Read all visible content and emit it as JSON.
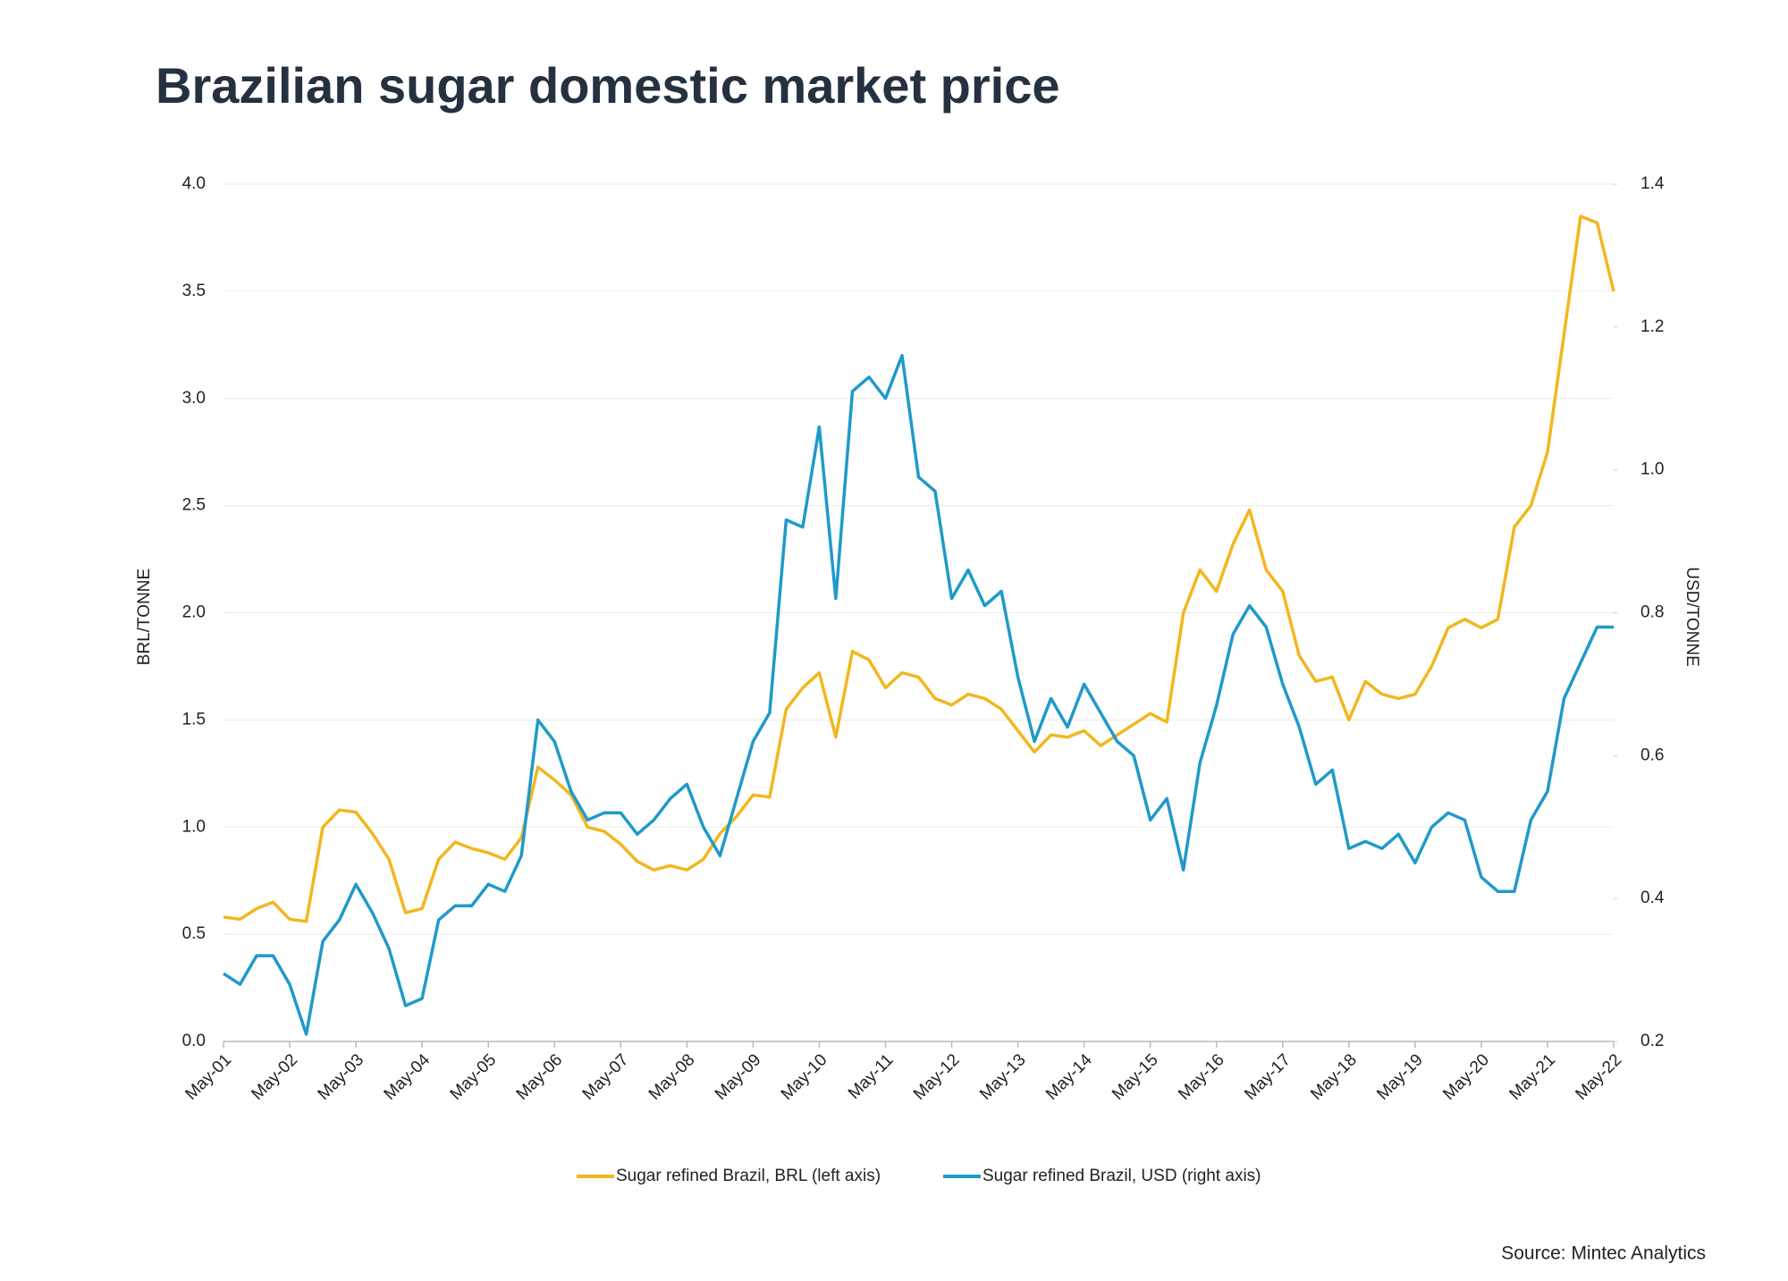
{
  "chart_data": {
    "type": "line",
    "title": "Brazilian sugar domestic market price",
    "y_label": "BRL/TONNE",
    "y2_label": "USD/TONNE",
    "source": "Source: Mintec Analytics",
    "categories": [
      "May-01",
      null,
      null,
      null,
      "May-02",
      null,
      null,
      null,
      "May-03",
      null,
      null,
      null,
      "May-04",
      null,
      null,
      null,
      "May-05",
      null,
      null,
      null,
      "May-06",
      null,
      null,
      null,
      "May-07",
      null,
      null,
      null,
      "May-08",
      null,
      null,
      null,
      "May-09",
      null,
      null,
      null,
      "May-10",
      null,
      null,
      null,
      "May-11",
      null,
      null,
      null,
      "May-12",
      null,
      null,
      null,
      "May-13",
      null,
      null,
      null,
      "May-14",
      null,
      null,
      null,
      "May-15",
      null,
      null,
      null,
      "May-16",
      null,
      null,
      null,
      "May-17",
      null,
      null,
      null,
      "May-18",
      null,
      null,
      null,
      "May-19",
      null,
      null,
      null,
      "May-20",
      null,
      null,
      null,
      "May-21",
      null,
      null,
      null,
      "May-22"
    ],
    "series": [
      {
        "name": "Sugar refined Brazil, BRL (left axis)",
        "color": "#f2b71f",
        "axis": "y",
        "values": [
          0.58,
          0.57,
          0.62,
          0.65,
          0.57,
          0.56,
          1.0,
          1.08,
          1.07,
          0.97,
          0.85,
          0.6,
          0.62,
          0.85,
          0.93,
          0.9,
          0.88,
          0.85,
          0.95,
          1.28,
          1.22,
          1.15,
          1.0,
          0.98,
          0.92,
          0.84,
          0.8,
          0.82,
          0.8,
          0.85,
          0.97,
          1.05,
          1.15,
          1.14,
          1.55,
          1.65,
          1.72,
          1.42,
          1.82,
          1.78,
          1.65,
          1.72,
          1.7,
          1.6,
          1.57,
          1.62,
          1.6,
          1.55,
          1.45,
          1.35,
          1.43,
          1.42,
          1.45,
          1.38,
          1.43,
          1.48,
          1.53,
          1.49,
          2.0,
          2.2,
          2.1,
          2.32,
          2.48,
          2.2,
          2.1,
          1.8,
          1.68,
          1.7,
          1.5,
          1.68,
          1.62,
          1.6,
          1.62,
          1.75,
          1.93,
          1.97,
          1.93,
          1.97,
          2.4,
          2.5,
          2.75,
          3.3,
          3.85,
          3.82,
          3.5
        ]
      },
      {
        "name": "Sugar refined Brazil, USD (right axis)",
        "color": "#1f9ac9",
        "axis": "y2",
        "values": [
          0.295,
          0.28,
          0.32,
          0.32,
          0.28,
          0.21,
          0.34,
          0.37,
          0.42,
          0.38,
          0.33,
          0.25,
          0.26,
          0.37,
          0.39,
          0.39,
          0.42,
          0.41,
          0.46,
          0.65,
          0.62,
          0.55,
          0.51,
          0.52,
          0.52,
          0.49,
          0.51,
          0.54,
          0.56,
          0.5,
          0.46,
          0.54,
          0.62,
          0.66,
          0.93,
          0.92,
          1.06,
          0.82,
          1.11,
          1.13,
          1.1,
          1.16,
          0.99,
          0.97,
          0.82,
          0.86,
          0.81,
          0.83,
          0.71,
          0.62,
          0.68,
          0.64,
          0.7,
          0.66,
          0.62,
          0.6,
          0.51,
          0.54,
          0.44,
          0.59,
          0.67,
          0.77,
          0.81,
          0.78,
          0.7,
          0.64,
          0.56,
          0.58,
          0.47,
          0.48,
          0.47,
          0.49,
          0.45,
          0.5,
          0.52,
          0.51,
          0.43,
          0.41,
          0.41,
          0.51,
          0.55,
          0.68,
          0.73,
          0.78,
          0.78
        ]
      }
    ],
    "ylim": [
      0,
      4
    ],
    "yticks": [
      {
        "value": 0,
        "label": "0.0"
      },
      0.5,
      {
        "value": 1,
        "label": "1.0"
      },
      1.5,
      {
        "value": 2,
        "label": "2.0"
      },
      2.5,
      {
        "value": 3,
        "label": "3.0"
      },
      3.5,
      {
        "value": 4,
        "label": "4.0"
      }
    ],
    "y2lim": [
      0.2,
      1.4
    ],
    "y2ticks": [
      0.2,
      0.4,
      0.6,
      0.8,
      {
        "value": 1,
        "label": "1.0"
      },
      1.2,
      1.4
    ],
    "grid": true,
    "legend": "bottom"
  }
}
